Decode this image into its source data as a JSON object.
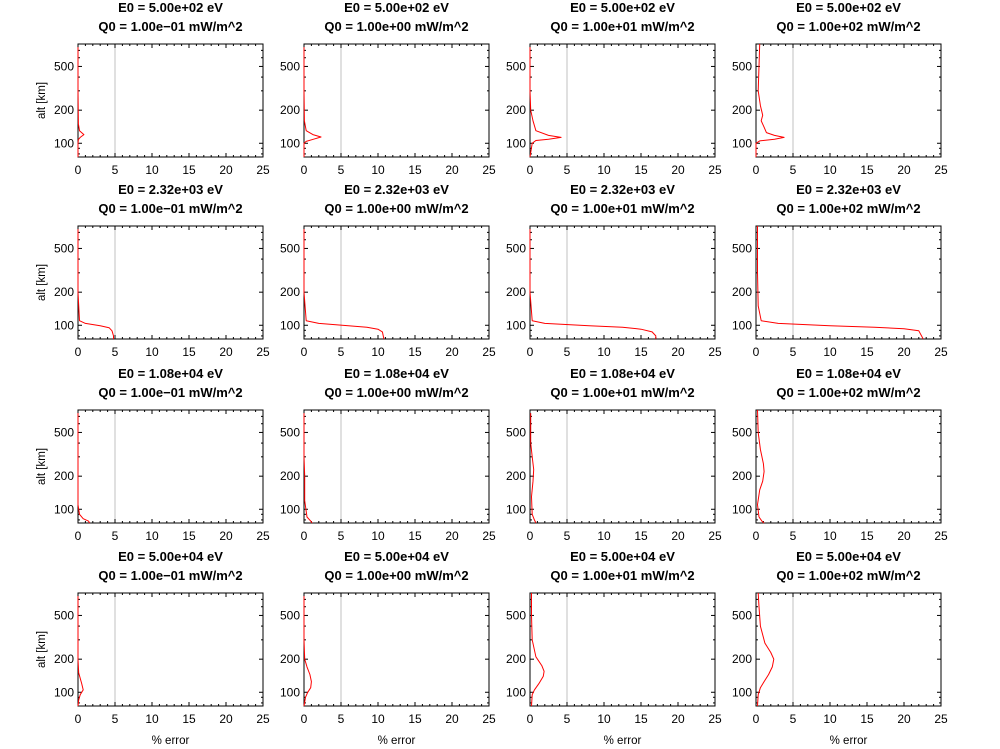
{
  "figure": {
    "xlabel": "% error",
    "ylabel": "alt [km]",
    "xticks": [
      0,
      5,
      10,
      15,
      20,
      25
    ],
    "yticks": [
      100,
      200,
      500
    ],
    "row_titles": [
      "E0 = 5.00e+02 eV",
      "E0 = 2.32e+03 eV",
      "E0 = 1.08e+04 eV",
      "E0 = 5.00e+04 eV"
    ],
    "col_titles": [
      "Q0 = 1.00e−01 mW/m^2",
      "Q0 = 1.00e+00 mW/m^2",
      "Q0 = 1.00e+01 mW/m^2",
      "Q0 = 1.00e+02 mW/m^2"
    ],
    "line_color": "#ff0000",
    "refline_color": "#c0c0c0"
  },
  "chart_data": {
    "type": "line",
    "layout": "4x4 grid of small multiples",
    "xlim": [
      0,
      25
    ],
    "ylim": [
      75,
      800
    ],
    "yscale": "log",
    "xlabel": "% error",
    "ylabel": "alt [km]",
    "reference_line_x": 5,
    "grid": false,
    "panels": [
      {
        "E0": "5.00e+02 eV",
        "Q0": "1.00e−01 mW/m^2",
        "points": [
          [
            0,
            750
          ],
          [
            0,
            300
          ],
          [
            0.05,
            150
          ],
          [
            0.2,
            130
          ],
          [
            0.8,
            120
          ],
          [
            0.3,
            113
          ],
          [
            0.05,
            108
          ],
          [
            0,
            100
          ],
          [
            0,
            75
          ]
        ]
      },
      {
        "E0": "5.00e+02 eV",
        "Q0": "1.00e+00 mW/m^2",
        "points": [
          [
            0,
            750
          ],
          [
            0,
            300
          ],
          [
            0.05,
            160
          ],
          [
            0.3,
            130
          ],
          [
            1.2,
            120
          ],
          [
            2.3,
            114
          ],
          [
            1.3,
            109
          ],
          [
            0.3,
            104
          ],
          [
            0,
            100
          ],
          [
            0,
            75
          ]
        ]
      },
      {
        "E0": "5.00e+02 eV",
        "Q0": "1.00e+01 mW/m^2",
        "points": [
          [
            0,
            750
          ],
          [
            0,
            300
          ],
          [
            0.1,
            200
          ],
          [
            0.4,
            160
          ],
          [
            0.8,
            130
          ],
          [
            2.5,
            118
          ],
          [
            4.2,
            113
          ],
          [
            2.5,
            109
          ],
          [
            0.8,
            106
          ],
          [
            0.3,
            100
          ],
          [
            0,
            75
          ]
        ]
      },
      {
        "E0": "5.00e+02 eV",
        "Q0": "1.00e+02 mW/m^2",
        "points": [
          [
            0.5,
            800
          ],
          [
            0.4,
            500
          ],
          [
            0.3,
            300
          ],
          [
            0.6,
            220
          ],
          [
            0.9,
            180
          ],
          [
            0.7,
            160
          ],
          [
            1.1,
            140
          ],
          [
            1.4,
            125
          ],
          [
            2.5,
            118
          ],
          [
            3.8,
            113
          ],
          [
            2.5,
            109
          ],
          [
            0.5,
            105
          ],
          [
            0,
            100
          ],
          [
            0,
            75
          ]
        ]
      },
      {
        "E0": "2.32e+03 eV",
        "Q0": "1.00e−01 mW/m^2",
        "points": [
          [
            0,
            750
          ],
          [
            0,
            200
          ],
          [
            0.2,
            110
          ],
          [
            1,
            104
          ],
          [
            3,
            99
          ],
          [
            4.2,
            95
          ],
          [
            4.6,
            89
          ],
          [
            4.8,
            80
          ],
          [
            4.8,
            75
          ]
        ]
      },
      {
        "E0": "2.32e+03 eV",
        "Q0": "1.00e+00 mW/m^2",
        "points": [
          [
            0,
            750
          ],
          [
            0,
            200
          ],
          [
            0.3,
            110
          ],
          [
            2,
            104
          ],
          [
            6,
            99
          ],
          [
            8.5,
            96
          ],
          [
            10,
            92
          ],
          [
            10.6,
            87
          ],
          [
            10.8,
            75
          ]
        ]
      },
      {
        "E0": "2.32e+03 eV",
        "Q0": "1.00e+01 mW/m^2",
        "points": [
          [
            0,
            750
          ],
          [
            0,
            200
          ],
          [
            0.3,
            110
          ],
          [
            2,
            104
          ],
          [
            8,
            99
          ],
          [
            12.5,
            96
          ],
          [
            15,
            92
          ],
          [
            16.5,
            87
          ],
          [
            17,
            80
          ],
          [
            17,
            75
          ]
        ]
      },
      {
        "E0": "2.32e+03 eV",
        "Q0": "1.00e+02 mW/m^2",
        "points": [
          [
            0.2,
            800
          ],
          [
            0.2,
            300
          ],
          [
            0.3,
            150
          ],
          [
            0.7,
            110
          ],
          [
            3,
            104
          ],
          [
            10,
            99
          ],
          [
            16,
            96
          ],
          [
            20,
            93
          ],
          [
            22,
            89
          ],
          [
            22.6,
            75
          ]
        ]
      },
      {
        "E0": "1.08e+04 eV",
        "Q0": "1.00e−01 mW/m^2",
        "points": [
          [
            0,
            750
          ],
          [
            0,
            110
          ],
          [
            0.2,
            90
          ],
          [
            0.7,
            82
          ],
          [
            1.4,
            78
          ],
          [
            1.6,
            75
          ]
        ]
      },
      {
        "E0": "1.08e+04 eV",
        "Q0": "1.00e+00 mW/m^2",
        "points": [
          [
            0,
            750
          ],
          [
            0,
            300
          ],
          [
            0.1,
            200
          ],
          [
            0.1,
            120
          ],
          [
            0.4,
            85
          ],
          [
            0.9,
            78
          ],
          [
            1.1,
            75
          ]
        ]
      },
      {
        "E0": "1.08e+04 eV",
        "Q0": "1.00e+01 mW/m^2",
        "points": [
          [
            0.1,
            750
          ],
          [
            0.1,
            400
          ],
          [
            0.3,
            300
          ],
          [
            0.5,
            230
          ],
          [
            0.4,
            180
          ],
          [
            0.2,
            130
          ],
          [
            0.3,
            90
          ],
          [
            0.6,
            80
          ],
          [
            0.8,
            75
          ]
        ]
      },
      {
        "E0": "1.08e+04 eV",
        "Q0": "1.00e+02 mW/m^2",
        "points": [
          [
            0.2,
            800
          ],
          [
            0.3,
            500
          ],
          [
            0.6,
            350
          ],
          [
            1,
            260
          ],
          [
            1.1,
            220
          ],
          [
            0.9,
            180
          ],
          [
            0.5,
            150
          ],
          [
            0.2,
            110
          ],
          [
            0.4,
            85
          ],
          [
            0.8,
            78
          ],
          [
            1.1,
            75
          ]
        ]
      },
      {
        "E0": "5.00e+04 eV",
        "Q0": "1.00e−01 mW/m^2",
        "points": [
          [
            0,
            750
          ],
          [
            0,
            200
          ],
          [
            0.1,
            150
          ],
          [
            0.5,
            120
          ],
          [
            0.7,
            105
          ],
          [
            0.3,
            95
          ],
          [
            0.1,
            85
          ],
          [
            0,
            75
          ]
        ]
      },
      {
        "E0": "5.00e+04 eV",
        "Q0": "1.00e+00 mW/m^2",
        "points": [
          [
            0,
            750
          ],
          [
            0,
            300
          ],
          [
            0.1,
            200
          ],
          [
            0.4,
            170
          ],
          [
            0.8,
            145
          ],
          [
            1,
            125
          ],
          [
            0.9,
            110
          ],
          [
            0.5,
            100
          ],
          [
            0.2,
            90
          ],
          [
            0,
            75
          ]
        ]
      },
      {
        "E0": "5.00e+04 eV",
        "Q0": "1.00e+01 mW/m^2",
        "points": [
          [
            0.2,
            800
          ],
          [
            0.2,
            500
          ],
          [
            0.3,
            300
          ],
          [
            0.8,
            210
          ],
          [
            1.6,
            175
          ],
          [
            1.9,
            155
          ],
          [
            1.8,
            140
          ],
          [
            1.2,
            120
          ],
          [
            0.6,
            105
          ],
          [
            0.3,
            95
          ],
          [
            0.2,
            75
          ]
        ]
      },
      {
        "E0": "5.00e+04 eV",
        "Q0": "1.00e+02 mW/m^2",
        "points": [
          [
            0.3,
            800
          ],
          [
            0.4,
            600
          ],
          [
            0.6,
            400
          ],
          [
            1.2,
            280
          ],
          [
            2,
            230
          ],
          [
            2.4,
            200
          ],
          [
            2.2,
            170
          ],
          [
            1.7,
            145
          ],
          [
            1.1,
            125
          ],
          [
            0.6,
            110
          ],
          [
            0.3,
            95
          ],
          [
            0.2,
            75
          ]
        ]
      }
    ]
  }
}
